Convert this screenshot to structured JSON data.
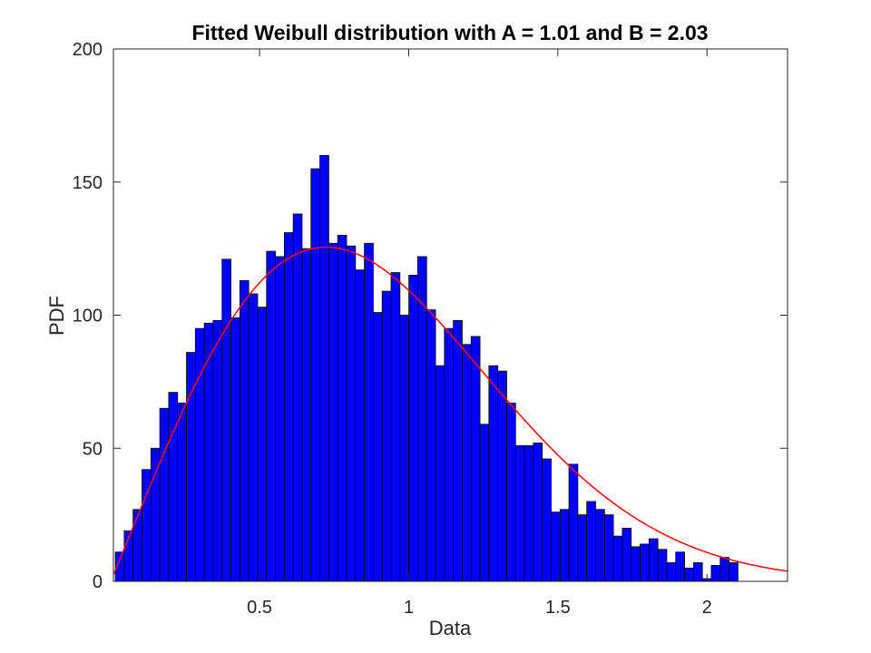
{
  "chart_data": {
    "type": "bar",
    "title": "Fitted Weibull distribution with A = 1.01 and B = 2.03",
    "xlabel": "Data",
    "ylabel": "PDF",
    "xlim": [
      0.01,
      2.27
    ],
    "ylim": [
      0,
      200
    ],
    "xticks": [
      {
        "value": 0.5,
        "label": "0.5"
      },
      {
        "value": 1,
        "label": "1"
      },
      {
        "value": 1.5,
        "label": "1.5"
      },
      {
        "value": 2,
        "label": "2"
      }
    ],
    "yticks": [
      {
        "value": 0,
        "label": "0"
      },
      {
        "value": 50,
        "label": "50"
      },
      {
        "value": 100,
        "label": "100"
      },
      {
        "value": 150,
        "label": "150"
      },
      {
        "value": 200,
        "label": "200"
      }
    ],
    "histogram": {
      "bin_start": 0.0164,
      "bin_width": 0.02982,
      "color": "#0000ff",
      "edge_color": "#000000",
      "counts": [
        11,
        19,
        27,
        42,
        50,
        65,
        71,
        67,
        86,
        95,
        97,
        98,
        121,
        99,
        113,
        108,
        103,
        124,
        122,
        131,
        138,
        125,
        155,
        160,
        127,
        130,
        126,
        117,
        127,
        101,
        109,
        116,
        100,
        115,
        122,
        102,
        81,
        95,
        98,
        89,
        92,
        59,
        81,
        79,
        67,
        51,
        51,
        52,
        46,
        26,
        27,
        44,
        25,
        30,
        27,
        25,
        17,
        20,
        13,
        14,
        16,
        12,
        7,
        11,
        5,
        7,
        1,
        6,
        9,
        7
      ]
    },
    "fitted_curve": {
      "name": "Weibull fit",
      "color": "#ff0000",
      "scale_A": 1.01,
      "shape_B": 2.03
    },
    "grid": false
  }
}
